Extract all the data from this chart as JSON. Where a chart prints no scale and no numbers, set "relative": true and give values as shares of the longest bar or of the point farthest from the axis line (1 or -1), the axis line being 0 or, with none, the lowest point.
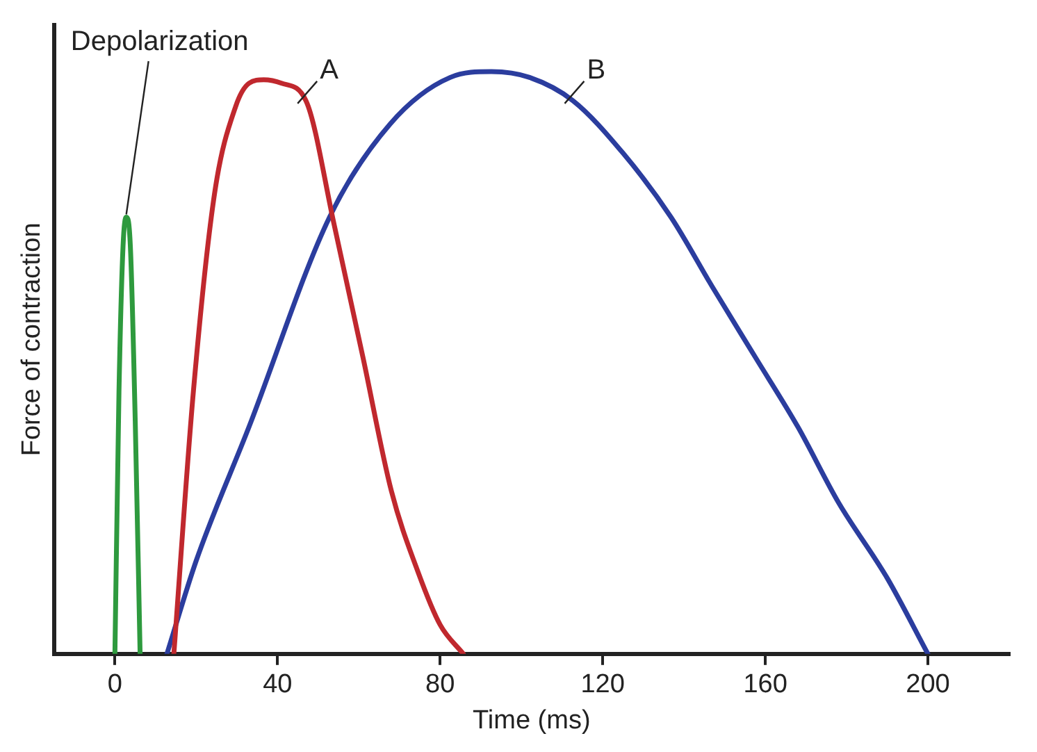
{
  "chart_data": {
    "type": "line",
    "relative": true,
    "xlabel": "Time (ms)",
    "ylabel": "Force of contraction",
    "xlim": [
      -15,
      220
    ],
    "xticks": [
      0,
      40,
      80,
      120,
      160,
      200
    ],
    "grid": false,
    "legend": false,
    "marker": "none",
    "line_style": "solid",
    "tick_labels": "x",
    "series": [
      {
        "name": "Depolarization",
        "color": "#2e9a3e",
        "x": [
          0,
          1,
          2,
          2.8,
          3.8,
          5,
          6.2
        ],
        "values": [
          0,
          0.45,
          0.7,
          0.75,
          0.7,
          0.4,
          0
        ]
      },
      {
        "name": "A",
        "color": "#c0282e",
        "x": [
          14.5,
          19.3,
          24.5,
          29.7,
          33,
          36.6,
          41,
          47,
          54,
          61,
          68,
          74.6,
          80,
          85.7
        ],
        "values": [
          0,
          0.45,
          0.79,
          0.94,
          0.98,
          0.986,
          0.98,
          0.95,
          0.735,
          0.51,
          0.28,
          0.14,
          0.05,
          0
        ]
      },
      {
        "name": "B",
        "color": "#2b3d9e",
        "x": [
          12.8,
          20,
          33,
          52.8,
          67.7,
          82.5,
          92.6,
          102,
          112.7,
          125,
          136.8,
          147,
          157.5,
          168,
          178,
          190,
          200
        ],
        "values": [
          0,
          0.16,
          0.39,
          0.75,
          0.91,
          0.99,
          1,
          0.99,
          0.95,
          0.86,
          0.75,
          0.63,
          0.51,
          0.39,
          0.26,
          0.13,
          0
        ]
      }
    ]
  }
}
